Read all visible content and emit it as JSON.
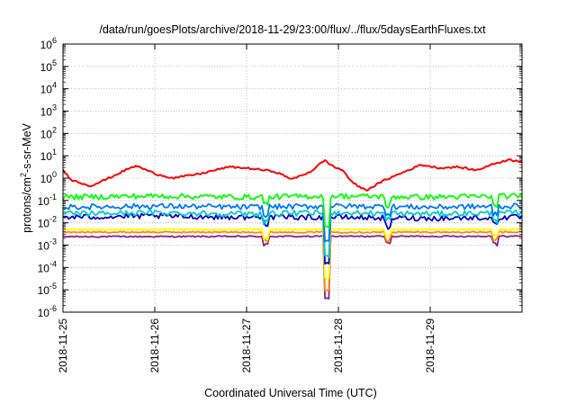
{
  "chart_data": {
    "type": "line",
    "title": "/data/run/goesPlots/archive/2018-11-29/23:00/flux/../flux/5daysEarthFluxes.txt",
    "xlabel": "Coordinated Universal Time (UTC)",
    "ylabel": "protons/cm²-s-sr-MeV",
    "ylabel_parts": [
      "protons/cm",
      "2",
      "-s-sr-MeV"
    ],
    "y_scale": "log",
    "ylim_exp": [
      -6,
      6
    ],
    "y_tick_exponents": [
      6,
      5,
      4,
      3,
      2,
      1,
      0,
      -1,
      -2,
      -3,
      -4,
      -5,
      -6
    ],
    "x_range_days": [
      0,
      5
    ],
    "x_tick_labels": [
      "2018-11-25",
      "2018-11-26",
      "2018-11-27",
      "2018-11-28",
      "2018-11-29"
    ],
    "grid": true,
    "samples_per_day": 48,
    "series": [
      {
        "color": "#ff0000",
        "log10_flux_profile": [
          [
            0.0,
            0.35
          ],
          [
            0.1,
            -0.1
          ],
          [
            0.3,
            -0.35
          ],
          [
            0.5,
            0.0
          ],
          [
            0.7,
            0.4
          ],
          [
            0.8,
            0.55
          ],
          [
            1.0,
            0.2
          ],
          [
            1.2,
            0.0
          ],
          [
            1.5,
            0.2
          ],
          [
            1.8,
            0.5
          ],
          [
            2.0,
            0.45
          ],
          [
            2.3,
            0.3
          ],
          [
            2.5,
            -0.05
          ],
          [
            2.7,
            0.3
          ],
          [
            2.85,
            0.8
          ],
          [
            2.95,
            0.5
          ],
          [
            3.05,
            0.35
          ],
          [
            3.15,
            -0.2
          ],
          [
            3.3,
            -0.55
          ],
          [
            3.5,
            -0.1
          ],
          [
            3.7,
            0.25
          ],
          [
            3.9,
            0.6
          ],
          [
            4.1,
            0.45
          ],
          [
            4.3,
            0.5
          ],
          [
            4.5,
            0.35
          ],
          [
            4.7,
            0.65
          ],
          [
            4.85,
            0.82
          ],
          [
            5.0,
            0.75
          ]
        ],
        "dropout_to_log10": null
      },
      {
        "color": "#00ff00",
        "log10_flux_profile": [
          [
            0.0,
            -0.85
          ],
          [
            1.0,
            -0.8
          ],
          [
            2.0,
            -0.85
          ],
          [
            3.0,
            -0.8
          ],
          [
            4.0,
            -0.85
          ],
          [
            5.0,
            -0.8
          ]
        ],
        "dropout_to_log10": -2.2
      },
      {
        "color": "#0077ff",
        "log10_flux_profile": [
          [
            0.0,
            -1.3
          ],
          [
            1.0,
            -1.25
          ],
          [
            2.0,
            -1.3
          ],
          [
            3.0,
            -1.25
          ],
          [
            4.0,
            -1.3
          ],
          [
            5.0,
            -1.25
          ]
        ],
        "dropout_to_log10": -2.8
      },
      {
        "color": "#00cccc",
        "log10_flux_profile": [
          [
            0.0,
            -1.6
          ],
          [
            1.0,
            -1.55
          ],
          [
            2.0,
            -1.6
          ],
          [
            3.0,
            -1.55
          ],
          [
            4.0,
            -1.6
          ],
          [
            5.0,
            -1.55
          ]
        ],
        "dropout_to_log10": -3.5
      },
      {
        "color": "#0000cc",
        "log10_flux_profile": [
          [
            0.0,
            -1.75
          ],
          [
            1.0,
            -1.7
          ],
          [
            2.0,
            -1.75
          ],
          [
            3.0,
            -1.75
          ],
          [
            4.0,
            -1.8
          ],
          [
            5.0,
            -1.75
          ]
        ],
        "dropout_to_log10": -3.8
      },
      {
        "color": "#ffff00",
        "log10_flux_profile": [
          [
            0.0,
            -2.3
          ],
          [
            5.0,
            -2.3
          ]
        ],
        "dropout_to_log10": -4.5
      },
      {
        "color": "#ff8800",
        "log10_flux_profile": [
          [
            0.0,
            -2.42
          ],
          [
            5.0,
            -2.42
          ]
        ],
        "dropout_to_log10": -5.0
      },
      {
        "color": "#882288",
        "log10_flux_profile": [
          [
            0.0,
            -2.62
          ],
          [
            5.0,
            -2.6
          ]
        ],
        "dropout_to_log10": -5.4
      }
    ],
    "dropout_event_day": 2.87
  }
}
